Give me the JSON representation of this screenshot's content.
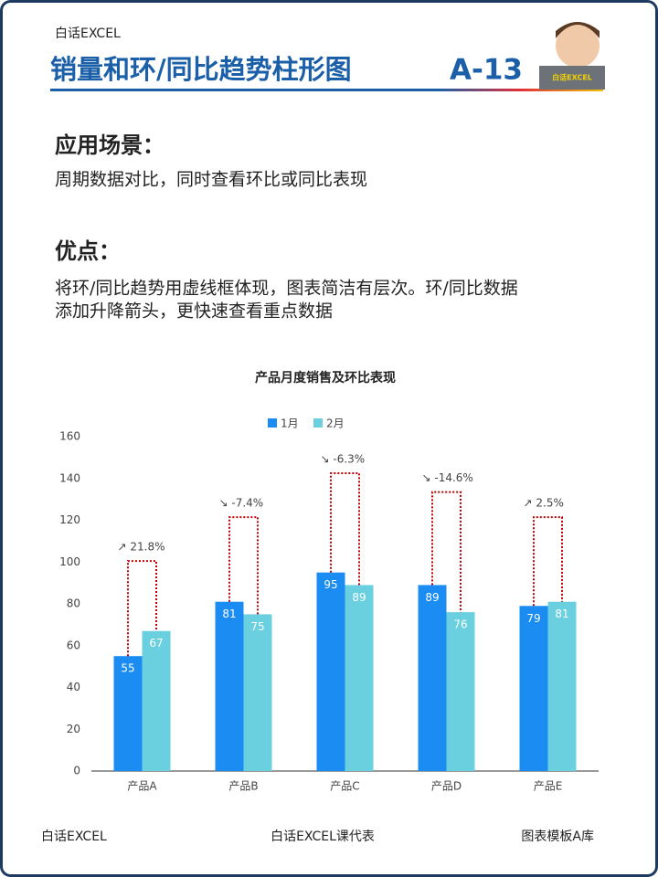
{
  "header": {
    "brand": "白话EXCEL",
    "title": "销量和环/同比趋势柱形图",
    "code": "A-13",
    "avatar_label": "白话EXCEL"
  },
  "sections": [
    {
      "heading": "应用场景：",
      "body": [
        "周期数据对比，同时查看环比或同比表现"
      ]
    },
    {
      "heading": "优点：",
      "body": [
        "将环/同比趋势用虚线框体现，图表简洁有层次。环/同比数据",
        "添加升降箭头，更快速查看重点数据"
      ]
    }
  ],
  "chart_data": {
    "type": "bar",
    "title": "产品月度销售及环比表现",
    "categories": [
      "产品A",
      "产品B",
      "产品C",
      "产品D",
      "产品E"
    ],
    "series": [
      {
        "name": "1月",
        "color": "#1b8cf2",
        "values": [
          55,
          81,
          95,
          89,
          79
        ]
      },
      {
        "name": "2月",
        "color": "#6ad0e0",
        "values": [
          67,
          75,
          89,
          76,
          81
        ]
      }
    ],
    "annotations": [
      "↗ 21.8%",
      "↘ -7.4%",
      "↘ -6.3%",
      "↘ -14.6%",
      "↗ 2.5%"
    ],
    "ylim": [
      0,
      160
    ],
    "yticks": [
      0,
      20,
      40,
      60,
      80,
      100,
      120,
      140,
      160
    ],
    "grid": false,
    "legend": "top"
  },
  "footer": [
    "白话EXCEL",
    "白话EXCEL课代表",
    "图表模板A库"
  ]
}
